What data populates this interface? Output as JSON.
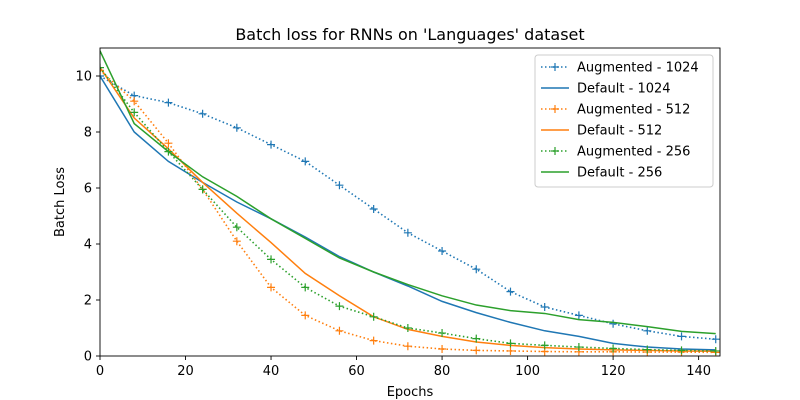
{
  "chart_data": {
    "type": "line",
    "title": "Batch loss for RNNs on 'Languages' dataset",
    "xlabel": "Epochs",
    "ylabel": "Batch Loss",
    "xlim": [
      0,
      145
    ],
    "ylim": [
      0,
      11
    ],
    "xticks": [
      0,
      20,
      40,
      60,
      80,
      100,
      120,
      140
    ],
    "yticks": [
      0,
      2,
      4,
      6,
      8,
      10
    ],
    "grid": false,
    "legend_position": "top-right",
    "series": [
      {
        "name": "Augmented - 1024",
        "color": "#1f77b4",
        "style": "dotted",
        "marker": "plus",
        "x": [
          0,
          8,
          16,
          24,
          32,
          40,
          48,
          56,
          64,
          72,
          80,
          88,
          96,
          104,
          112,
          120,
          128,
          136,
          144
        ],
        "y": [
          10.0,
          9.3,
          9.05,
          8.65,
          8.15,
          7.55,
          6.95,
          6.1,
          5.25,
          4.4,
          3.75,
          3.1,
          2.3,
          1.75,
          1.45,
          1.15,
          0.9,
          0.7,
          0.6
        ]
      },
      {
        "name": "Default - 1024",
        "color": "#1f77b4",
        "style": "solid",
        "marker": "none",
        "x": [
          0,
          8,
          16,
          24,
          32,
          40,
          48,
          56,
          64,
          72,
          80,
          88,
          96,
          104,
          112,
          120,
          128,
          136,
          144
        ],
        "y": [
          10.0,
          8.0,
          6.95,
          6.2,
          5.5,
          4.9,
          4.25,
          3.55,
          3.0,
          2.5,
          1.95,
          1.55,
          1.2,
          0.9,
          0.7,
          0.45,
          0.32,
          0.25,
          0.22
        ]
      },
      {
        "name": "Augmented - 512",
        "color": "#ff7f0e",
        "style": "dotted",
        "marker": "plus",
        "x": [
          0,
          8,
          16,
          24,
          32,
          40,
          48,
          56,
          64,
          72,
          80,
          88,
          96,
          104,
          112,
          120,
          128,
          136,
          144
        ],
        "y": [
          10.2,
          9.1,
          7.6,
          5.95,
          4.1,
          2.45,
          1.45,
          0.9,
          0.55,
          0.35,
          0.25,
          0.2,
          0.18,
          0.16,
          0.15,
          0.15,
          0.14,
          0.14,
          0.13
        ]
      },
      {
        "name": "Default - 512",
        "color": "#ff7f0e",
        "style": "solid",
        "marker": "none",
        "x": [
          0,
          8,
          16,
          24,
          32,
          40,
          48,
          56,
          64,
          72,
          80,
          88,
          96,
          104,
          112,
          120,
          128,
          136,
          144
        ],
        "y": [
          10.3,
          8.5,
          7.4,
          6.2,
          5.1,
          4.05,
          2.95,
          2.15,
          1.4,
          0.95,
          0.7,
          0.5,
          0.38,
          0.3,
          0.25,
          0.22,
          0.2,
          0.18,
          0.17
        ]
      },
      {
        "name": "Augmented - 256",
        "color": "#2ca02c",
        "style": "dotted",
        "marker": "plus",
        "x": [
          0,
          8,
          16,
          24,
          32,
          40,
          48,
          56,
          64,
          72,
          80,
          88,
          96,
          104,
          112,
          120,
          128,
          136,
          144
        ],
        "y": [
          10.3,
          8.7,
          7.3,
          5.95,
          4.6,
          3.45,
          2.45,
          1.78,
          1.4,
          1.0,
          0.82,
          0.62,
          0.45,
          0.38,
          0.32,
          0.27,
          0.23,
          0.2,
          0.18
        ]
      },
      {
        "name": "Default - 256",
        "color": "#2ca02c",
        "style": "solid",
        "marker": "none",
        "x": [
          0,
          8,
          16,
          24,
          32,
          40,
          48,
          56,
          64,
          72,
          80,
          88,
          96,
          104,
          112,
          120,
          128,
          136,
          144
        ],
        "y": [
          10.9,
          8.3,
          7.3,
          6.4,
          5.7,
          4.9,
          4.2,
          3.5,
          3.0,
          2.55,
          2.15,
          1.82,
          1.62,
          1.52,
          1.3,
          1.2,
          1.05,
          0.88,
          0.8
        ]
      }
    ]
  }
}
